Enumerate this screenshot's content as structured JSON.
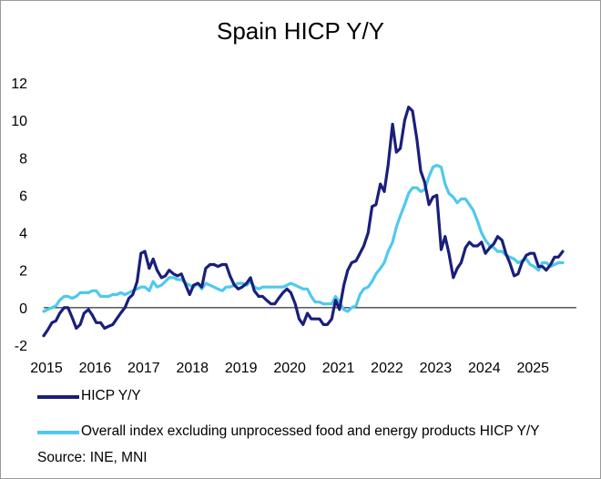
{
  "chart_data": {
    "type": "line",
    "title": "Spain HICP Y/Y",
    "xlabel": "",
    "ylabel": "",
    "x_ticks": [
      "2015",
      "2016",
      "2017",
      "2018",
      "2019",
      "2020",
      "2021",
      "2022",
      "2023",
      "2024",
      "2025"
    ],
    "y_ticks": [
      "-2",
      "0",
      "2",
      "4",
      "6",
      "8",
      "10",
      "12"
    ],
    "ylim": [
      -2,
      12
    ],
    "xlim": [
      2015.0,
      2025.95
    ],
    "grid": false,
    "legend_position": "bottom",
    "source": "Source: INE, MNI",
    "series": [
      {
        "name": "HICP Y/Y",
        "color": "#1a1f7a",
        "points": [
          [
            2015.0,
            -1.5
          ],
          [
            2015.08,
            -1.2
          ],
          [
            2015.17,
            -0.8
          ],
          [
            2015.25,
            -0.7
          ],
          [
            2015.33,
            -0.3
          ],
          [
            2015.42,
            0.0
          ],
          [
            2015.5,
            0.0
          ],
          [
            2015.58,
            -0.5
          ],
          [
            2015.67,
            -1.1
          ],
          [
            2015.75,
            -0.9
          ],
          [
            2015.83,
            -0.3
          ],
          [
            2015.92,
            -0.1
          ],
          [
            2016.0,
            -0.4
          ],
          [
            2016.08,
            -0.8
          ],
          [
            2016.17,
            -0.8
          ],
          [
            2016.25,
            -1.1
          ],
          [
            2016.33,
            -1.0
          ],
          [
            2016.42,
            -0.9
          ],
          [
            2016.5,
            -0.6
          ],
          [
            2016.58,
            -0.3
          ],
          [
            2016.67,
            0.0
          ],
          [
            2016.75,
            0.5
          ],
          [
            2016.83,
            0.7
          ],
          [
            2016.92,
            1.4
          ],
          [
            2017.0,
            2.9
          ],
          [
            2017.08,
            3.0
          ],
          [
            2017.17,
            2.1
          ],
          [
            2017.25,
            2.6
          ],
          [
            2017.33,
            2.0
          ],
          [
            2017.42,
            1.6
          ],
          [
            2017.5,
            1.7
          ],
          [
            2017.58,
            2.0
          ],
          [
            2017.67,
            1.8
          ],
          [
            2017.75,
            1.7
          ],
          [
            2017.83,
            1.8
          ],
          [
            2017.92,
            1.2
          ],
          [
            2018.0,
            0.7
          ],
          [
            2018.08,
            1.2
          ],
          [
            2018.17,
            1.3
          ],
          [
            2018.25,
            1.1
          ],
          [
            2018.33,
            2.1
          ],
          [
            2018.42,
            2.3
          ],
          [
            2018.5,
            2.3
          ],
          [
            2018.58,
            2.2
          ],
          [
            2018.67,
            2.3
          ],
          [
            2018.75,
            2.3
          ],
          [
            2018.83,
            1.7
          ],
          [
            2018.92,
            1.2
          ],
          [
            2019.0,
            1.0
          ],
          [
            2019.08,
            1.1
          ],
          [
            2019.17,
            1.3
          ],
          [
            2019.25,
            1.6
          ],
          [
            2019.33,
            0.9
          ],
          [
            2019.42,
            0.6
          ],
          [
            2019.5,
            0.6
          ],
          [
            2019.58,
            0.4
          ],
          [
            2019.67,
            0.2
          ],
          [
            2019.75,
            0.2
          ],
          [
            2019.83,
            0.5
          ],
          [
            2019.92,
            0.8
          ],
          [
            2020.0,
            1.0
          ],
          [
            2020.08,
            0.8
          ],
          [
            2020.17,
            0.2
          ],
          [
            2020.25,
            -0.6
          ],
          [
            2020.33,
            -0.9
          ],
          [
            2020.42,
            -0.3
          ],
          [
            2020.5,
            -0.6
          ],
          [
            2020.58,
            -0.6
          ],
          [
            2020.67,
            -0.6
          ],
          [
            2020.75,
            -0.9
          ],
          [
            2020.83,
            -0.9
          ],
          [
            2020.92,
            -0.6
          ],
          [
            2021.0,
            0.4
          ],
          [
            2021.08,
            -0.1
          ],
          [
            2021.17,
            1.2
          ],
          [
            2021.25,
            2.0
          ],
          [
            2021.33,
            2.4
          ],
          [
            2021.42,
            2.5
          ],
          [
            2021.5,
            2.9
          ],
          [
            2021.58,
            3.3
          ],
          [
            2021.67,
            4.0
          ],
          [
            2021.75,
            5.4
          ],
          [
            2021.83,
            5.5
          ],
          [
            2021.92,
            6.6
          ],
          [
            2022.0,
            6.2
          ],
          [
            2022.08,
            7.6
          ],
          [
            2022.17,
            9.8
          ],
          [
            2022.25,
            8.3
          ],
          [
            2022.33,
            8.5
          ],
          [
            2022.42,
            10.0
          ],
          [
            2022.5,
            10.7
          ],
          [
            2022.58,
            10.5
          ],
          [
            2022.67,
            9.0
          ],
          [
            2022.75,
            7.3
          ],
          [
            2022.83,
            6.7
          ],
          [
            2022.92,
            5.5
          ],
          [
            2023.0,
            5.9
          ],
          [
            2023.08,
            6.0
          ],
          [
            2023.17,
            3.1
          ],
          [
            2023.25,
            3.8
          ],
          [
            2023.33,
            2.9
          ],
          [
            2023.42,
            1.6
          ],
          [
            2023.5,
            2.1
          ],
          [
            2023.58,
            2.4
          ],
          [
            2023.67,
            3.2
          ],
          [
            2023.75,
            3.5
          ],
          [
            2023.83,
            3.3
          ],
          [
            2023.92,
            3.3
          ],
          [
            2024.0,
            3.5
          ],
          [
            2024.08,
            2.9
          ],
          [
            2024.17,
            3.2
          ],
          [
            2024.25,
            3.4
          ],
          [
            2024.33,
            3.8
          ],
          [
            2024.42,
            3.6
          ],
          [
            2024.5,
            2.9
          ],
          [
            2024.58,
            2.4
          ],
          [
            2024.67,
            1.7
          ],
          [
            2024.75,
            1.8
          ],
          [
            2024.83,
            2.4
          ],
          [
            2024.92,
            2.8
          ],
          [
            2025.0,
            2.9
          ],
          [
            2025.08,
            2.9
          ],
          [
            2025.17,
            2.2
          ],
          [
            2025.25,
            2.2
          ],
          [
            2025.33,
            2.0
          ],
          [
            2025.42,
            2.3
          ],
          [
            2025.5,
            2.7
          ],
          [
            2025.58,
            2.7
          ],
          [
            2025.67,
            3.0
          ]
        ]
      },
      {
        "name": "Overall index excluding unprocessed food and energy products HICP Y/Y",
        "color": "#4fc9ec",
        "points": [
          [
            2015.0,
            -0.2
          ],
          [
            2015.08,
            -0.1
          ],
          [
            2015.17,
            0.0
          ],
          [
            2015.25,
            0.1
          ],
          [
            2015.33,
            0.4
          ],
          [
            2015.42,
            0.6
          ],
          [
            2015.5,
            0.6
          ],
          [
            2015.58,
            0.5
          ],
          [
            2015.67,
            0.6
          ],
          [
            2015.75,
            0.8
          ],
          [
            2015.83,
            0.8
          ],
          [
            2015.92,
            0.8
          ],
          [
            2016.0,
            0.9
          ],
          [
            2016.08,
            0.9
          ],
          [
            2016.17,
            0.6
          ],
          [
            2016.25,
            0.6
          ],
          [
            2016.33,
            0.6
          ],
          [
            2016.42,
            0.7
          ],
          [
            2016.5,
            0.7
          ],
          [
            2016.58,
            0.8
          ],
          [
            2016.67,
            0.7
          ],
          [
            2016.75,
            0.8
          ],
          [
            2016.83,
            0.9
          ],
          [
            2016.92,
            1.0
          ],
          [
            2017.0,
            1.1
          ],
          [
            2017.08,
            1.1
          ],
          [
            2017.17,
            0.9
          ],
          [
            2017.25,
            1.4
          ],
          [
            2017.33,
            1.1
          ],
          [
            2017.42,
            1.2
          ],
          [
            2017.5,
            1.4
          ],
          [
            2017.58,
            1.6
          ],
          [
            2017.67,
            1.6
          ],
          [
            2017.75,
            1.5
          ],
          [
            2017.83,
            1.5
          ],
          [
            2017.92,
            1.3
          ],
          [
            2018.0,
            1.2
          ],
          [
            2018.08,
            1.1
          ],
          [
            2018.17,
            1.3
          ],
          [
            2018.25,
            1.0
          ],
          [
            2018.33,
            1.3
          ],
          [
            2018.42,
            1.2
          ],
          [
            2018.5,
            1.1
          ],
          [
            2018.58,
            1.0
          ],
          [
            2018.67,
            0.9
          ],
          [
            2018.75,
            1.1
          ],
          [
            2018.83,
            1.1
          ],
          [
            2018.92,
            1.2
          ],
          [
            2019.0,
            1.3
          ],
          [
            2019.08,
            1.3
          ],
          [
            2019.17,
            1.2
          ],
          [
            2019.25,
            1.4
          ],
          [
            2019.33,
            1.1
          ],
          [
            2019.42,
            1.0
          ],
          [
            2019.5,
            1.1
          ],
          [
            2019.58,
            1.1
          ],
          [
            2019.67,
            1.1
          ],
          [
            2019.75,
            1.1
          ],
          [
            2019.83,
            1.1
          ],
          [
            2019.92,
            1.1
          ],
          [
            2020.0,
            1.2
          ],
          [
            2020.08,
            1.3
          ],
          [
            2020.17,
            1.2
          ],
          [
            2020.25,
            1.1
          ],
          [
            2020.33,
            1.0
          ],
          [
            2020.42,
            1.0
          ],
          [
            2020.5,
            0.6
          ],
          [
            2020.58,
            0.3
          ],
          [
            2020.67,
            0.3
          ],
          [
            2020.75,
            0.2
          ],
          [
            2020.83,
            0.2
          ],
          [
            2020.92,
            0.2
          ],
          [
            2021.0,
            0.6
          ],
          [
            2021.08,
            0.3
          ],
          [
            2021.17,
            -0.1
          ],
          [
            2021.25,
            -0.2
          ],
          [
            2021.33,
            0.0
          ],
          [
            2021.42,
            0.1
          ],
          [
            2021.5,
            0.7
          ],
          [
            2021.58,
            1.0
          ],
          [
            2021.67,
            1.1
          ],
          [
            2021.75,
            1.4
          ],
          [
            2021.83,
            1.8
          ],
          [
            2021.92,
            2.1
          ],
          [
            2022.0,
            2.4
          ],
          [
            2022.08,
            3.0
          ],
          [
            2022.17,
            3.5
          ],
          [
            2022.25,
            4.3
          ],
          [
            2022.33,
            4.9
          ],
          [
            2022.42,
            5.5
          ],
          [
            2022.5,
            6.1
          ],
          [
            2022.58,
            6.4
          ],
          [
            2022.67,
            6.4
          ],
          [
            2022.75,
            6.2
          ],
          [
            2022.83,
            6.3
          ],
          [
            2022.92,
            7.0
          ],
          [
            2023.0,
            7.5
          ],
          [
            2023.08,
            7.6
          ],
          [
            2023.17,
            7.5
          ],
          [
            2023.25,
            6.6
          ],
          [
            2023.33,
            6.1
          ],
          [
            2023.42,
            5.9
          ],
          [
            2023.5,
            5.6
          ],
          [
            2023.58,
            5.8
          ],
          [
            2023.67,
            5.8
          ],
          [
            2023.75,
            5.5
          ],
          [
            2023.83,
            5.2
          ],
          [
            2023.92,
            4.6
          ],
          [
            2024.0,
            4.0
          ],
          [
            2024.08,
            3.6
          ],
          [
            2024.17,
            3.3
          ],
          [
            2024.25,
            3.2
          ],
          [
            2024.33,
            3.0
          ],
          [
            2024.42,
            3.0
          ],
          [
            2024.5,
            2.8
          ],
          [
            2024.58,
            2.7
          ],
          [
            2024.67,
            2.6
          ],
          [
            2024.75,
            2.4
          ],
          [
            2024.83,
            2.5
          ],
          [
            2024.92,
            2.6
          ],
          [
            2025.0,
            2.3
          ],
          [
            2025.08,
            2.2
          ],
          [
            2025.17,
            2.0
          ],
          [
            2025.25,
            2.4
          ],
          [
            2025.33,
            2.4
          ],
          [
            2025.42,
            2.2
          ],
          [
            2025.5,
            2.3
          ],
          [
            2025.58,
            2.4
          ],
          [
            2025.67,
            2.4
          ]
        ]
      }
    ]
  }
}
